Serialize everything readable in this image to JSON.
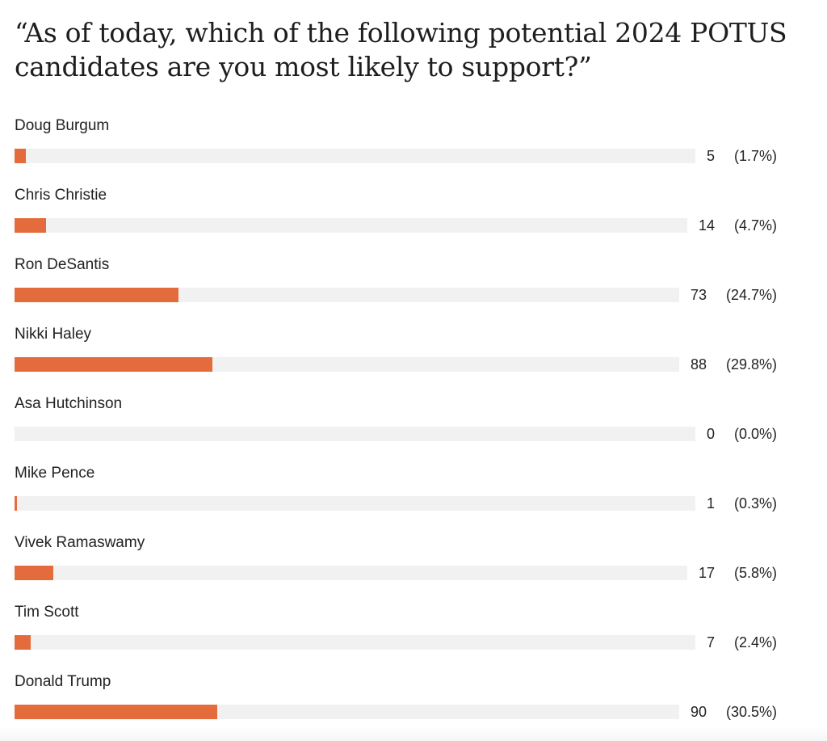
{
  "title": "“As of today, which of the following potential 2024 POTUS candidates are you most likely to support?”",
  "bar_color": "#e46c3c",
  "track_color": "#f1f1f1",
  "chart_data": {
    "type": "bar",
    "orientation": "horizontal",
    "title": "“As of today, which of the following potential 2024 POTUS candidates are you most likely to support?”",
    "categories": [
      "Doug Burgum",
      "Chris Christie",
      "Ron DeSantis",
      "Nikki Haley",
      "Asa Hutchinson",
      "Mike Pence",
      "Vivek Ramaswamy",
      "Tim Scott",
      "Donald Trump"
    ],
    "values": [
      5,
      14,
      73,
      88,
      0,
      1,
      17,
      7,
      90
    ],
    "percent_labels": [
      "(1.7%)",
      "(4.7%)",
      "(24.7%)",
      "(29.8%)",
      "(0.0%)",
      "(0.3%)",
      "(5.8%)",
      "(2.4%)",
      "(30.5%)"
    ],
    "percents": [
      1.7,
      4.7,
      24.7,
      29.8,
      0.0,
      0.3,
      5.8,
      2.4,
      30.5
    ],
    "xlim": [
      0,
      100
    ]
  }
}
